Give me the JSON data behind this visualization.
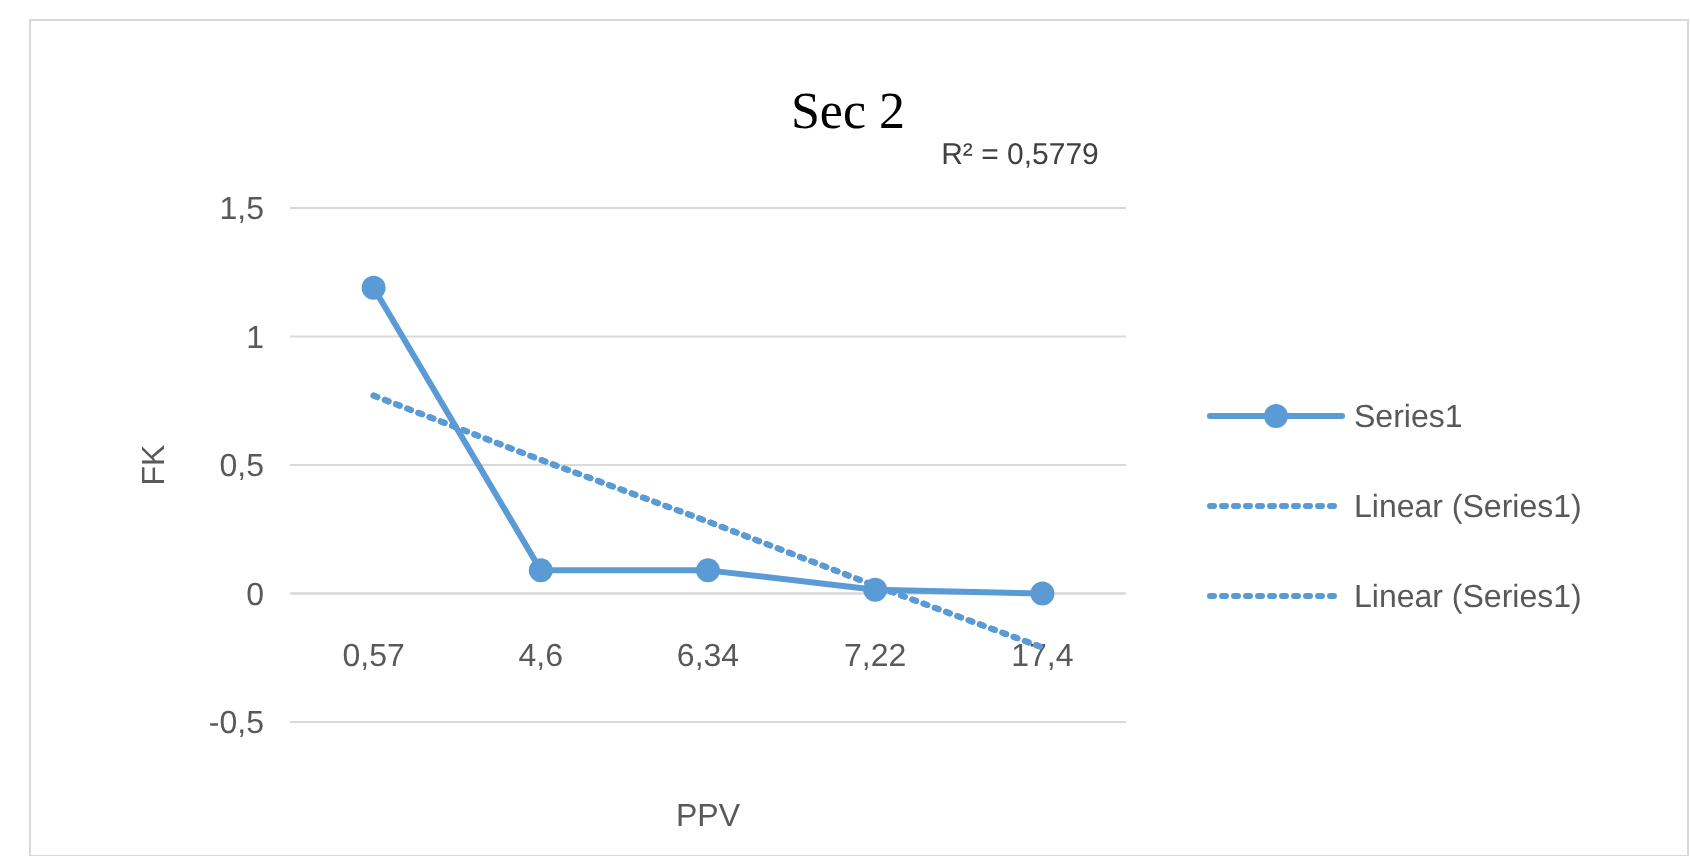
{
  "chart_data": {
    "type": "line",
    "title": "Sec 2",
    "xlabel": "PPV",
    "ylabel": "FK",
    "categories": [
      "0,57",
      "4,6",
      "6,34",
      "7,22",
      "17,4"
    ],
    "series": [
      {
        "name": "Series1",
        "color": "#5b9bd5",
        "values": [
          1.19,
          0.09,
          0.09,
          0.015,
          0
        ],
        "marker": "circle",
        "line_style": "solid"
      },
      {
        "name": "Linear (Series1)",
        "color": "#5b9bd5",
        "values": [
          0.77,
          0.52,
          0.28,
          0.03,
          -0.21
        ],
        "marker": "none",
        "line_style": "dotted"
      },
      {
        "name": "Linear (Series1)",
        "color": "#5b9bd5",
        "values": [
          0.77,
          0.52,
          0.28,
          0.03,
          -0.21
        ],
        "marker": "none",
        "line_style": "dotted"
      }
    ],
    "annotations": [
      "R² = 0,5779"
    ],
    "ylim": [
      -0.5,
      1.5
    ],
    "yticks": [
      {
        "value": -0.5,
        "label": "-0,5"
      },
      0,
      {
        "value": 0.5,
        "label": "0,5"
      },
      1,
      {
        "value": 1.5,
        "label": "1,5"
      }
    ],
    "grid": "y",
    "legend": "right"
  }
}
